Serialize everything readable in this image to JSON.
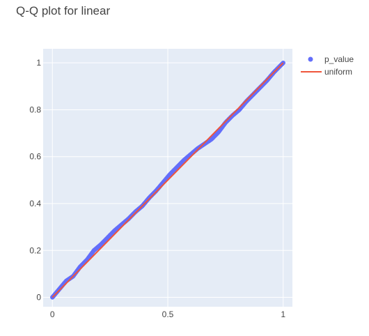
{
  "chart_data": {
    "type": "scatter",
    "title": "Q-Q plot for linear",
    "xlabel": "",
    "ylabel": "",
    "xlim": [
      -0.04,
      1.04
    ],
    "ylim": [
      -0.04,
      1.06
    ],
    "x_ticks": [
      {
        "value": 0,
        "label": "0"
      },
      {
        "value": 0.5,
        "label": "0.5"
      },
      {
        "value": 1,
        "label": "1"
      }
    ],
    "y_ticks": [
      {
        "value": 0,
        "label": "0"
      },
      {
        "value": 0.2,
        "label": "0.2"
      },
      {
        "value": 0.4,
        "label": "0.4"
      },
      {
        "value": 0.6,
        "label": "0.6"
      },
      {
        "value": 0.8,
        "label": "0.8"
      },
      {
        "value": 1,
        "label": "1"
      }
    ],
    "grid": true,
    "legend_position": "top-right",
    "series": [
      {
        "name": "p_value",
        "mode": "markers",
        "color": "#636efa",
        "x": [
          0,
          0.03,
          0.06,
          0.09,
          0.12,
          0.15,
          0.18,
          0.21,
          0.24,
          0.27,
          0.3,
          0.33,
          0.36,
          0.39,
          0.42,
          0.45,
          0.48,
          0.51,
          0.54,
          0.57,
          0.6,
          0.63,
          0.66,
          0.69,
          0.72,
          0.75,
          0.78,
          0.81,
          0.84,
          0.87,
          0.9,
          0.93,
          0.96,
          1
        ],
        "y": [
          0,
          0.035,
          0.07,
          0.09,
          0.13,
          0.16,
          0.2,
          0.225,
          0.255,
          0.285,
          0.31,
          0.335,
          0.365,
          0.39,
          0.425,
          0.455,
          0.49,
          0.525,
          0.555,
          0.585,
          0.61,
          0.635,
          0.655,
          0.675,
          0.705,
          0.745,
          0.775,
          0.8,
          0.835,
          0.865,
          0.895,
          0.925,
          0.96,
          1
        ]
      },
      {
        "name": "uniform",
        "mode": "lines",
        "color": "#ef553b",
        "x": [
          0,
          1
        ],
        "y": [
          0,
          1
        ]
      }
    ]
  }
}
